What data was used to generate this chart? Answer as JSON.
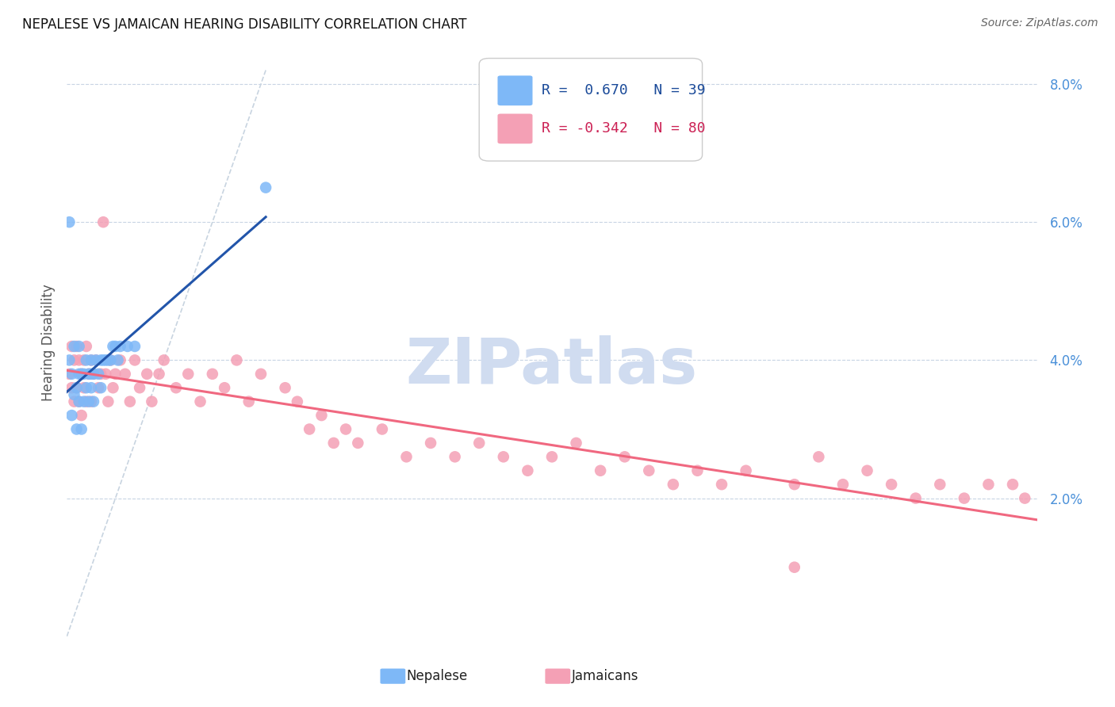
{
  "title": "NEPALESE VS JAMAICAN HEARING DISABILITY CORRELATION CHART",
  "source": "Source: ZipAtlas.com",
  "ylabel": "Hearing Disability",
  "xlim": [
    0.0,
    0.4
  ],
  "ylim": [
    0.0,
    0.085
  ],
  "nepalese_R": "0.670",
  "nepalese_N": "39",
  "jamaican_R": "-0.342",
  "jamaican_N": "80",
  "nepalese_color": "#7EB8F7",
  "jamaican_color": "#F4A0B5",
  "nepalese_line_color": "#2255AA",
  "jamaican_line_color": "#F06880",
  "diagonal_color": "#C8D4E0",
  "background_color": "#FFFFFF",
  "grid_color": "#C8D4E4",
  "watermark_color": "#D0DCF0",
  "nepalese_x": [
    0.001,
    0.001,
    0.002,
    0.002,
    0.003,
    0.003,
    0.004,
    0.004,
    0.005,
    0.005,
    0.005,
    0.006,
    0.006,
    0.007,
    0.007,
    0.008,
    0.008,
    0.009,
    0.009,
    0.01,
    0.01,
    0.01,
    0.011,
    0.011,
    0.012,
    0.013,
    0.014,
    0.014,
    0.015,
    0.016,
    0.017,
    0.018,
    0.019,
    0.02,
    0.021,
    0.022,
    0.025,
    0.028,
    0.082
  ],
  "nepalese_y": [
    0.06,
    0.04,
    0.038,
    0.032,
    0.042,
    0.035,
    0.036,
    0.03,
    0.038,
    0.042,
    0.034,
    0.038,
    0.03,
    0.038,
    0.034,
    0.04,
    0.036,
    0.038,
    0.034,
    0.04,
    0.036,
    0.038,
    0.038,
    0.034,
    0.04,
    0.038,
    0.04,
    0.036,
    0.04,
    0.04,
    0.04,
    0.04,
    0.042,
    0.042,
    0.04,
    0.042,
    0.042,
    0.042,
    0.065
  ],
  "jamaican_x": [
    0.001,
    0.002,
    0.002,
    0.003,
    0.003,
    0.004,
    0.004,
    0.005,
    0.005,
    0.006,
    0.006,
    0.007,
    0.007,
    0.008,
    0.008,
    0.009,
    0.01,
    0.01,
    0.011,
    0.012,
    0.013,
    0.014,
    0.015,
    0.016,
    0.017,
    0.018,
    0.019,
    0.02,
    0.022,
    0.024,
    0.026,
    0.028,
    0.03,
    0.033,
    0.035,
    0.038,
    0.04,
    0.045,
    0.05,
    0.055,
    0.06,
    0.065,
    0.07,
    0.075,
    0.08,
    0.09,
    0.095,
    0.1,
    0.105,
    0.11,
    0.115,
    0.12,
    0.13,
    0.14,
    0.15,
    0.16,
    0.17,
    0.18,
    0.19,
    0.2,
    0.21,
    0.22,
    0.23,
    0.24,
    0.25,
    0.26,
    0.27,
    0.28,
    0.3,
    0.31,
    0.32,
    0.33,
    0.34,
    0.35,
    0.36,
    0.37,
    0.38,
    0.39,
    0.395,
    0.3
  ],
  "jamaican_y": [
    0.038,
    0.042,
    0.036,
    0.04,
    0.034,
    0.042,
    0.036,
    0.04,
    0.034,
    0.038,
    0.032,
    0.04,
    0.036,
    0.042,
    0.034,
    0.038,
    0.04,
    0.034,
    0.038,
    0.04,
    0.036,
    0.038,
    0.06,
    0.038,
    0.034,
    0.04,
    0.036,
    0.038,
    0.04,
    0.038,
    0.034,
    0.04,
    0.036,
    0.038,
    0.034,
    0.038,
    0.04,
    0.036,
    0.038,
    0.034,
    0.038,
    0.036,
    0.04,
    0.034,
    0.038,
    0.036,
    0.034,
    0.03,
    0.032,
    0.028,
    0.03,
    0.028,
    0.03,
    0.026,
    0.028,
    0.026,
    0.028,
    0.026,
    0.024,
    0.026,
    0.028,
    0.024,
    0.026,
    0.024,
    0.022,
    0.024,
    0.022,
    0.024,
    0.022,
    0.026,
    0.022,
    0.024,
    0.022,
    0.02,
    0.022,
    0.02,
    0.022,
    0.022,
    0.02,
    0.01
  ]
}
